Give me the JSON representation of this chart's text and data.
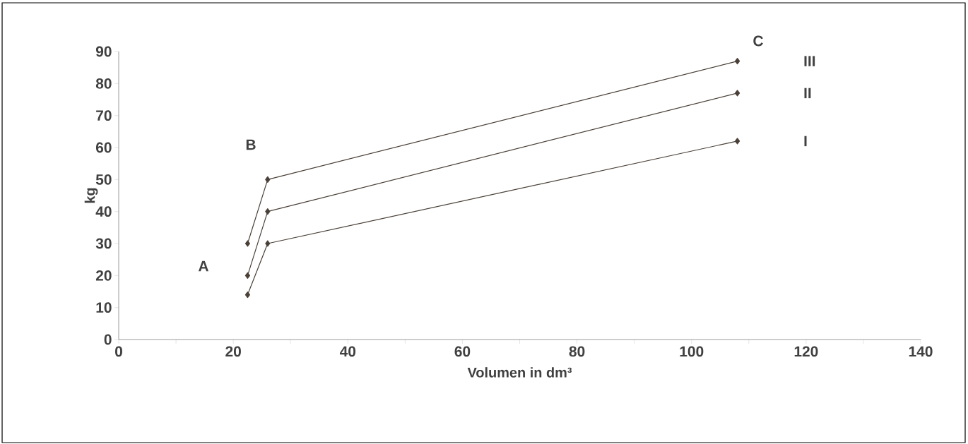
{
  "chart_data": {
    "type": "line",
    "xlabel": "Volumen in dm³",
    "ylabel": "kg",
    "x": [
      22.5,
      26,
      108
    ],
    "series": [
      {
        "name": "I",
        "color": "#4a4038",
        "values": [
          14,
          30,
          62
        ]
      },
      {
        "name": "II",
        "color": "#4a4038",
        "values": [
          20,
          40,
          77
        ]
      },
      {
        "name": "III",
        "color": "#4a4038",
        "values": [
          30,
          50,
          87
        ]
      }
    ],
    "xlim": [
      0,
      140
    ],
    "ylim": [
      0,
      90
    ],
    "xticks": [
      0,
      20,
      40,
      60,
      80,
      100,
      120,
      140
    ],
    "yticks": [
      0,
      10,
      20,
      30,
      40,
      50,
      60,
      70,
      80,
      90
    ],
    "marker": "diamond",
    "line_style": "solid",
    "annotations": [
      "A",
      "B",
      "C"
    ]
  }
}
